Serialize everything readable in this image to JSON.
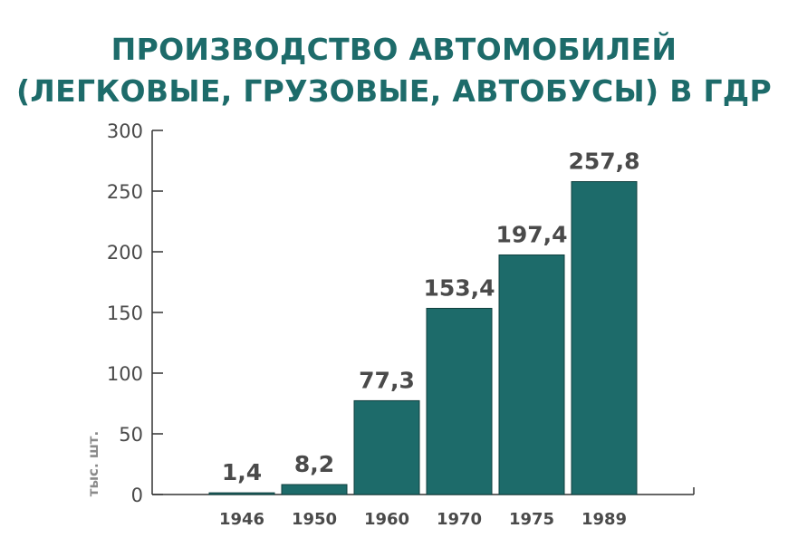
{
  "chart_data": {
    "type": "bar",
    "title_lines": [
      "ПРОИЗВОДСТВО АВТОМОБИЛЕЙ",
      "(ЛЕГКОВЫЕ, ГРУЗОВЫЕ, АВТОБУСЫ) В ГДР"
    ],
    "ylabel": "тыс. шт.",
    "xlabel": "",
    "categories": [
      "1946",
      "1950",
      "1960",
      "1970",
      "1975",
      "1989"
    ],
    "values": [
      1.4,
      8.2,
      77.3,
      153.4,
      197.4,
      257.8
    ],
    "value_labels": [
      "1,4",
      "8,2",
      "77,3",
      "153,4",
      "197,4",
      "257,8"
    ],
    "ylim": [
      0,
      300
    ],
    "yticks": [
      0,
      50,
      100,
      150,
      200,
      250,
      300
    ],
    "grid": false,
    "legend": "none",
    "bar_color": "#1d6b6a",
    "title_color": "#1d6b6a"
  }
}
